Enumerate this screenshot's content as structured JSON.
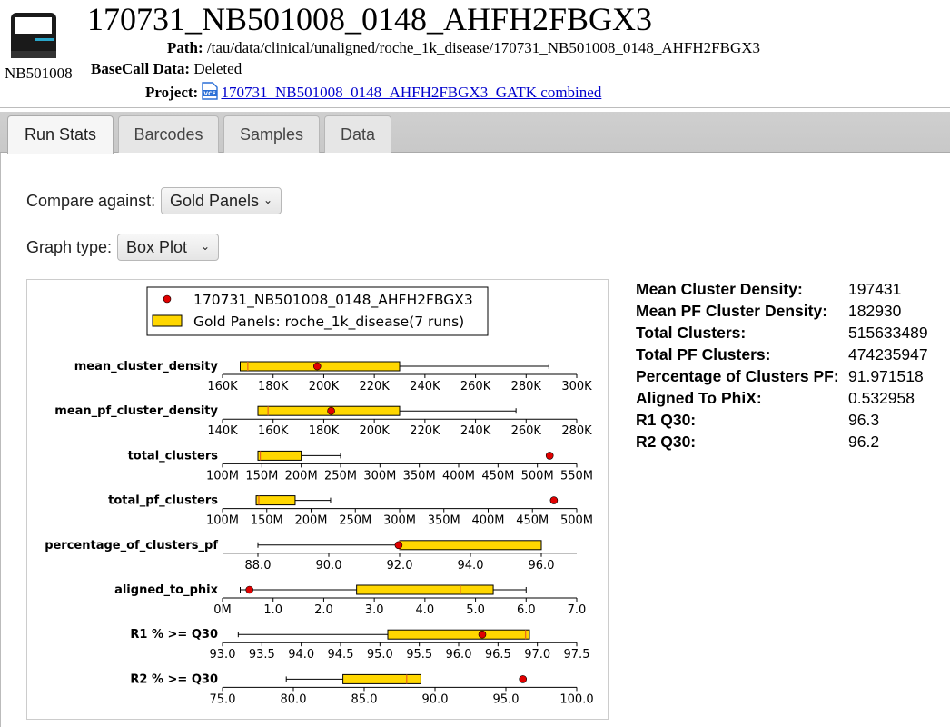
{
  "header": {
    "machine_label": "NB501008",
    "run_title": "170731_NB501008_0148_AHFH2FBGX3",
    "path_label": "Path:",
    "path_value": "/tau/data/clinical/unaligned/roche_1k_disease/170731_NB501008_0148_AHFH2FBGX3",
    "basecall_label": "BaseCall Data:",
    "basecall_value": "Deleted",
    "project_label": "Project:",
    "project_link": "170731_NB501008_0148_AHFH2FBGX3_GATK combined",
    "project_icon": "vcf-file-icon"
  },
  "tabs": [
    {
      "label": "Run Stats",
      "active": true
    },
    {
      "label": "Barcodes",
      "active": false
    },
    {
      "label": "Samples",
      "active": false
    },
    {
      "label": "Data",
      "active": false
    }
  ],
  "controls": {
    "compare_label": "Compare against:",
    "compare_value": "Gold Panels",
    "graph_label": "Graph type:",
    "graph_value": "Box Plot"
  },
  "stats": [
    {
      "label": "Mean Cluster Density:",
      "value": "197431"
    },
    {
      "label": "Mean PF Cluster Density:",
      "value": "182930"
    },
    {
      "label": "Total Clusters:",
      "value": "515633489"
    },
    {
      "label": "Total PF Clusters:",
      "value": "474235947"
    },
    {
      "label": "Percentage of Clusters PF:",
      "value": "91.971518"
    },
    {
      "label": "Aligned To PhiX:",
      "value": "0.532958"
    },
    {
      "label": "R1 Q30:",
      "value": "96.3"
    },
    {
      "label": "R2 Q30:",
      "value": "96.2"
    }
  ],
  "colors": {
    "box_fill": "#ffd700",
    "median": "#e8641e",
    "point": "#e00000",
    "link": "#0000cc"
  },
  "chart_data": {
    "type": "box",
    "legend": [
      {
        "label": "170731_NB501008_0148_AHFH2FBGX3",
        "marker": "point"
      },
      {
        "label": "Gold Panels: roche_1k_disease(7 runs)",
        "marker": "box"
      }
    ],
    "metrics": [
      {
        "name": "mean_cluster_density",
        "range": [
          160000,
          300000
        ],
        "ticks": [
          160000,
          180000,
          200000,
          220000,
          240000,
          260000,
          280000,
          300000
        ],
        "tick_labels": [
          "160K",
          "180K",
          "200K",
          "220K",
          "240K",
          "260K",
          "280K",
          "300K"
        ],
        "whisker_low": 167000,
        "q1": 167000,
        "median": 170000,
        "q3": 230000,
        "whisker_high": 289000,
        "point": 197431
      },
      {
        "name": "mean_pf_cluster_density",
        "range": [
          140000,
          280000
        ],
        "ticks": [
          140000,
          160000,
          180000,
          200000,
          220000,
          240000,
          260000,
          280000
        ],
        "tick_labels": [
          "140K",
          "160K",
          "180K",
          "200K",
          "220K",
          "240K",
          "260K",
          "280K"
        ],
        "whisker_low": 154000,
        "q1": 154000,
        "median": 158000,
        "q3": 210000,
        "whisker_high": 256000,
        "point": 182930
      },
      {
        "name": "total_clusters",
        "range": [
          100000000,
          550000000
        ],
        "ticks": [
          100000000,
          150000000,
          200000000,
          250000000,
          300000000,
          350000000,
          400000000,
          450000000,
          500000000,
          550000000
        ],
        "tick_labels": [
          "100M",
          "150M",
          "200M",
          "250M",
          "300M",
          "350M",
          "400M",
          "450M",
          "500M",
          "550M"
        ],
        "whisker_low": 145000000,
        "q1": 145000000,
        "median": 148000000,
        "q3": 200000000,
        "whisker_high": 250000000,
        "point": 515633489
      },
      {
        "name": "total_pf_clusters",
        "range": [
          100000000,
          500000000
        ],
        "ticks": [
          100000000,
          150000000,
          200000000,
          250000000,
          300000000,
          350000000,
          400000000,
          450000000,
          500000000
        ],
        "tick_labels": [
          "100M",
          "150M",
          "200M",
          "250M",
          "300M",
          "350M",
          "400M",
          "450M",
          "500M"
        ],
        "whisker_low": 138000000,
        "q1": 138000000,
        "median": 141000000,
        "q3": 182000000,
        "whisker_high": 222000000,
        "point": 474235947
      },
      {
        "name": "percentage_of_clusters_pf",
        "range": [
          87.0,
          97.0
        ],
        "ticks": [
          88,
          90,
          92,
          94,
          96
        ],
        "tick_labels": [
          "88.0",
          "90.0",
          "92.0",
          "94.0",
          "96.0"
        ],
        "whisker_low": 88.0,
        "q1": 92.0,
        "median": 92.0,
        "q3": 96.0,
        "whisker_high": 96.0,
        "point": 91.971518
      },
      {
        "name": "aligned_to_phix",
        "range": [
          0,
          7
        ],
        "ticks": [
          0,
          1,
          2,
          3,
          4,
          5,
          6,
          7
        ],
        "tick_labels": [
          "0M",
          "1.0",
          "2.0",
          "3.0",
          "4.0",
          "5.0",
          "6.0",
          "7.0"
        ],
        "whisker_low": 0.35,
        "q1": 2.65,
        "median": 4.7,
        "q3": 5.35,
        "whisker_high": 6.0,
        "point": 0.532958
      },
      {
        "name": "R1 % >= Q30",
        "range": [
          93.0,
          97.5
        ],
        "ticks": [
          93.0,
          93.5,
          94.0,
          94.5,
          95.0,
          95.5,
          96.0,
          96.5,
          97.0,
          97.5
        ],
        "tick_labels": [
          "93.0",
          "93.5",
          "94.0",
          "94.5",
          "95.0",
          "95.5",
          "96.0",
          "96.5",
          "97.0",
          "97.5"
        ],
        "whisker_low": 93.2,
        "q1": 95.1,
        "median": 96.85,
        "q3": 96.9,
        "whisker_high": 96.9,
        "point": 96.3
      },
      {
        "name": "R2 % >= Q30",
        "range": [
          75.0,
          100.0
        ],
        "ticks": [
          75,
          80,
          85,
          90,
          95,
          100
        ],
        "tick_labels": [
          "75.0",
          "80.0",
          "85.0",
          "90.0",
          "95.0",
          "100.0"
        ],
        "whisker_low": 79.5,
        "q1": 83.5,
        "median": 88.0,
        "q3": 89.0,
        "whisker_high": 89.0,
        "point": 96.2
      }
    ]
  }
}
